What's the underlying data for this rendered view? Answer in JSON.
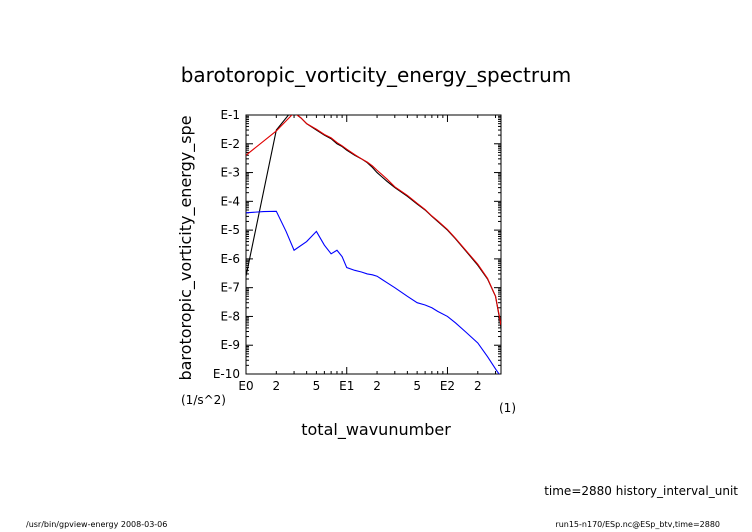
{
  "chart_data": {
    "type": "line",
    "title": "barotoropic_vorticity_energy_spectrum",
    "xlabel": "total_wavunumber",
    "ylabel": "barotoropic_vorticity_energy_spe",
    "x_unit": "(1)",
    "y_unit": "(1/s^2)",
    "xscale": "log",
    "yscale": "log",
    "xlim": [
      1,
      340
    ],
    "ylim": [
      1e-10,
      0.1
    ],
    "x_ticks": [
      {
        "label": "E0",
        "value": 1
      },
      {
        "label": "2",
        "value": 2
      },
      {
        "label": "5",
        "value": 5
      },
      {
        "label": "E1",
        "value": 10
      },
      {
        "label": "2",
        "value": 20
      },
      {
        "label": "5",
        "value": 50
      },
      {
        "label": "E2",
        "value": 100
      },
      {
        "label": "2",
        "value": 200
      }
    ],
    "y_ticks": [
      {
        "label": "E-1",
        "value": 0.1
      },
      {
        "label": "E-2",
        "value": 0.01
      },
      {
        "label": "E-3",
        "value": 0.001
      },
      {
        "label": "E-4",
        "value": 0.0001
      },
      {
        "label": "E-5",
        "value": 1e-05
      },
      {
        "label": "E-6",
        "value": 1e-06
      },
      {
        "label": "E-7",
        "value": 1e-07
      },
      {
        "label": "E-8",
        "value": 1e-08
      },
      {
        "label": "E-9",
        "value": 1e-09
      },
      {
        "label": "E-10",
        "value": 1e-10
      }
    ],
    "series": [
      {
        "color": "#000000",
        "points": [
          [
            1,
            2.5e-07
          ],
          [
            2,
            0.03
          ],
          [
            2.7,
            0.11
          ],
          [
            3,
            0.12
          ],
          [
            3.5,
            0.08
          ],
          [
            4,
            0.05
          ],
          [
            5,
            0.03
          ],
          [
            6,
            0.02
          ],
          [
            7,
            0.015
          ],
          [
            8,
            0.01
          ],
          [
            9,
            0.008
          ],
          [
            10,
            0.006
          ],
          [
            12,
            0.004
          ],
          [
            14,
            0.003
          ],
          [
            16,
            0.0022
          ],
          [
            18,
            0.0015
          ],
          [
            20,
            0.001
          ],
          [
            25,
            0.0005
          ],
          [
            30,
            0.0003
          ],
          [
            40,
            0.00015
          ],
          [
            50,
            8e-05
          ],
          [
            60,
            5e-05
          ],
          [
            70,
            3e-05
          ],
          [
            80,
            2e-05
          ],
          [
            100,
            1e-05
          ],
          [
            120,
            5e-06
          ],
          [
            150,
            2e-06
          ],
          [
            200,
            6e-07
          ],
          [
            250,
            2e-07
          ],
          [
            300,
            5e-08
          ],
          [
            330,
            8e-09
          ],
          [
            340,
            4e-09
          ]
        ]
      },
      {
        "color": "#e00000",
        "points": [
          [
            1,
            0.004
          ],
          [
            2,
            0.028
          ],
          [
            3,
            0.12
          ],
          [
            3.5,
            0.08
          ],
          [
            4,
            0.05
          ],
          [
            5,
            0.032
          ],
          [
            6,
            0.021
          ],
          [
            7,
            0.016
          ],
          [
            8,
            0.011
          ],
          [
            9,
            0.0085
          ],
          [
            10,
            0.0065
          ],
          [
            12,
            0.0042
          ],
          [
            14,
            0.003
          ],
          [
            16,
            0.0023
          ],
          [
            18,
            0.0017
          ],
          [
            20,
            0.0012
          ],
          [
            25,
            0.0006
          ],
          [
            30,
            0.00032
          ],
          [
            40,
            0.00016
          ],
          [
            50,
            8.5e-05
          ],
          [
            60,
            5.2e-05
          ],
          [
            70,
            3.1e-05
          ],
          [
            80,
            2.1e-05
          ],
          [
            100,
            1.05e-05
          ],
          [
            120,
            5.2e-06
          ],
          [
            150,
            2.1e-06
          ],
          [
            200,
            6.5e-07
          ],
          [
            250,
            2.1e-07
          ],
          [
            300,
            5e-08
          ],
          [
            330,
            9e-09
          ],
          [
            340,
            5e-09
          ]
        ]
      },
      {
        "color": "#0000ff",
        "points": [
          [
            1,
            4e-05
          ],
          [
            1.5,
            4.4e-05
          ],
          [
            2,
            4.5e-05
          ],
          [
            2.5,
            9e-06
          ],
          [
            3,
            2e-06
          ],
          [
            4,
            4e-06
          ],
          [
            5,
            9e-06
          ],
          [
            6,
            3e-06
          ],
          [
            7,
            1.5e-06
          ],
          [
            8,
            2e-06
          ],
          [
            9,
            1.2e-06
          ],
          [
            10,
            5e-07
          ],
          [
            12,
            4e-07
          ],
          [
            14,
            3.5e-07
          ],
          [
            16,
            3e-07
          ],
          [
            18,
            2.8e-07
          ],
          [
            20,
            2.5e-07
          ],
          [
            25,
            1.5e-07
          ],
          [
            30,
            1e-07
          ],
          [
            40,
            5e-08
          ],
          [
            50,
            3e-08
          ],
          [
            60,
            2.5e-08
          ],
          [
            70,
            2e-08
          ],
          [
            80,
            1.5e-08
          ],
          [
            100,
            1e-08
          ],
          [
            120,
            6e-09
          ],
          [
            150,
            3e-09
          ],
          [
            200,
            1.2e-09
          ],
          [
            250,
            4e-10
          ],
          [
            300,
            1.5e-10
          ],
          [
            340,
            8e-11
          ]
        ]
      }
    ]
  },
  "footer": {
    "time_label": "time=2880 history_interval_unit",
    "left": "/usr/bin/gpview-energy  2008-03-06",
    "right": "run15-n170/ESp.nc@ESp_btv,time=2880"
  }
}
